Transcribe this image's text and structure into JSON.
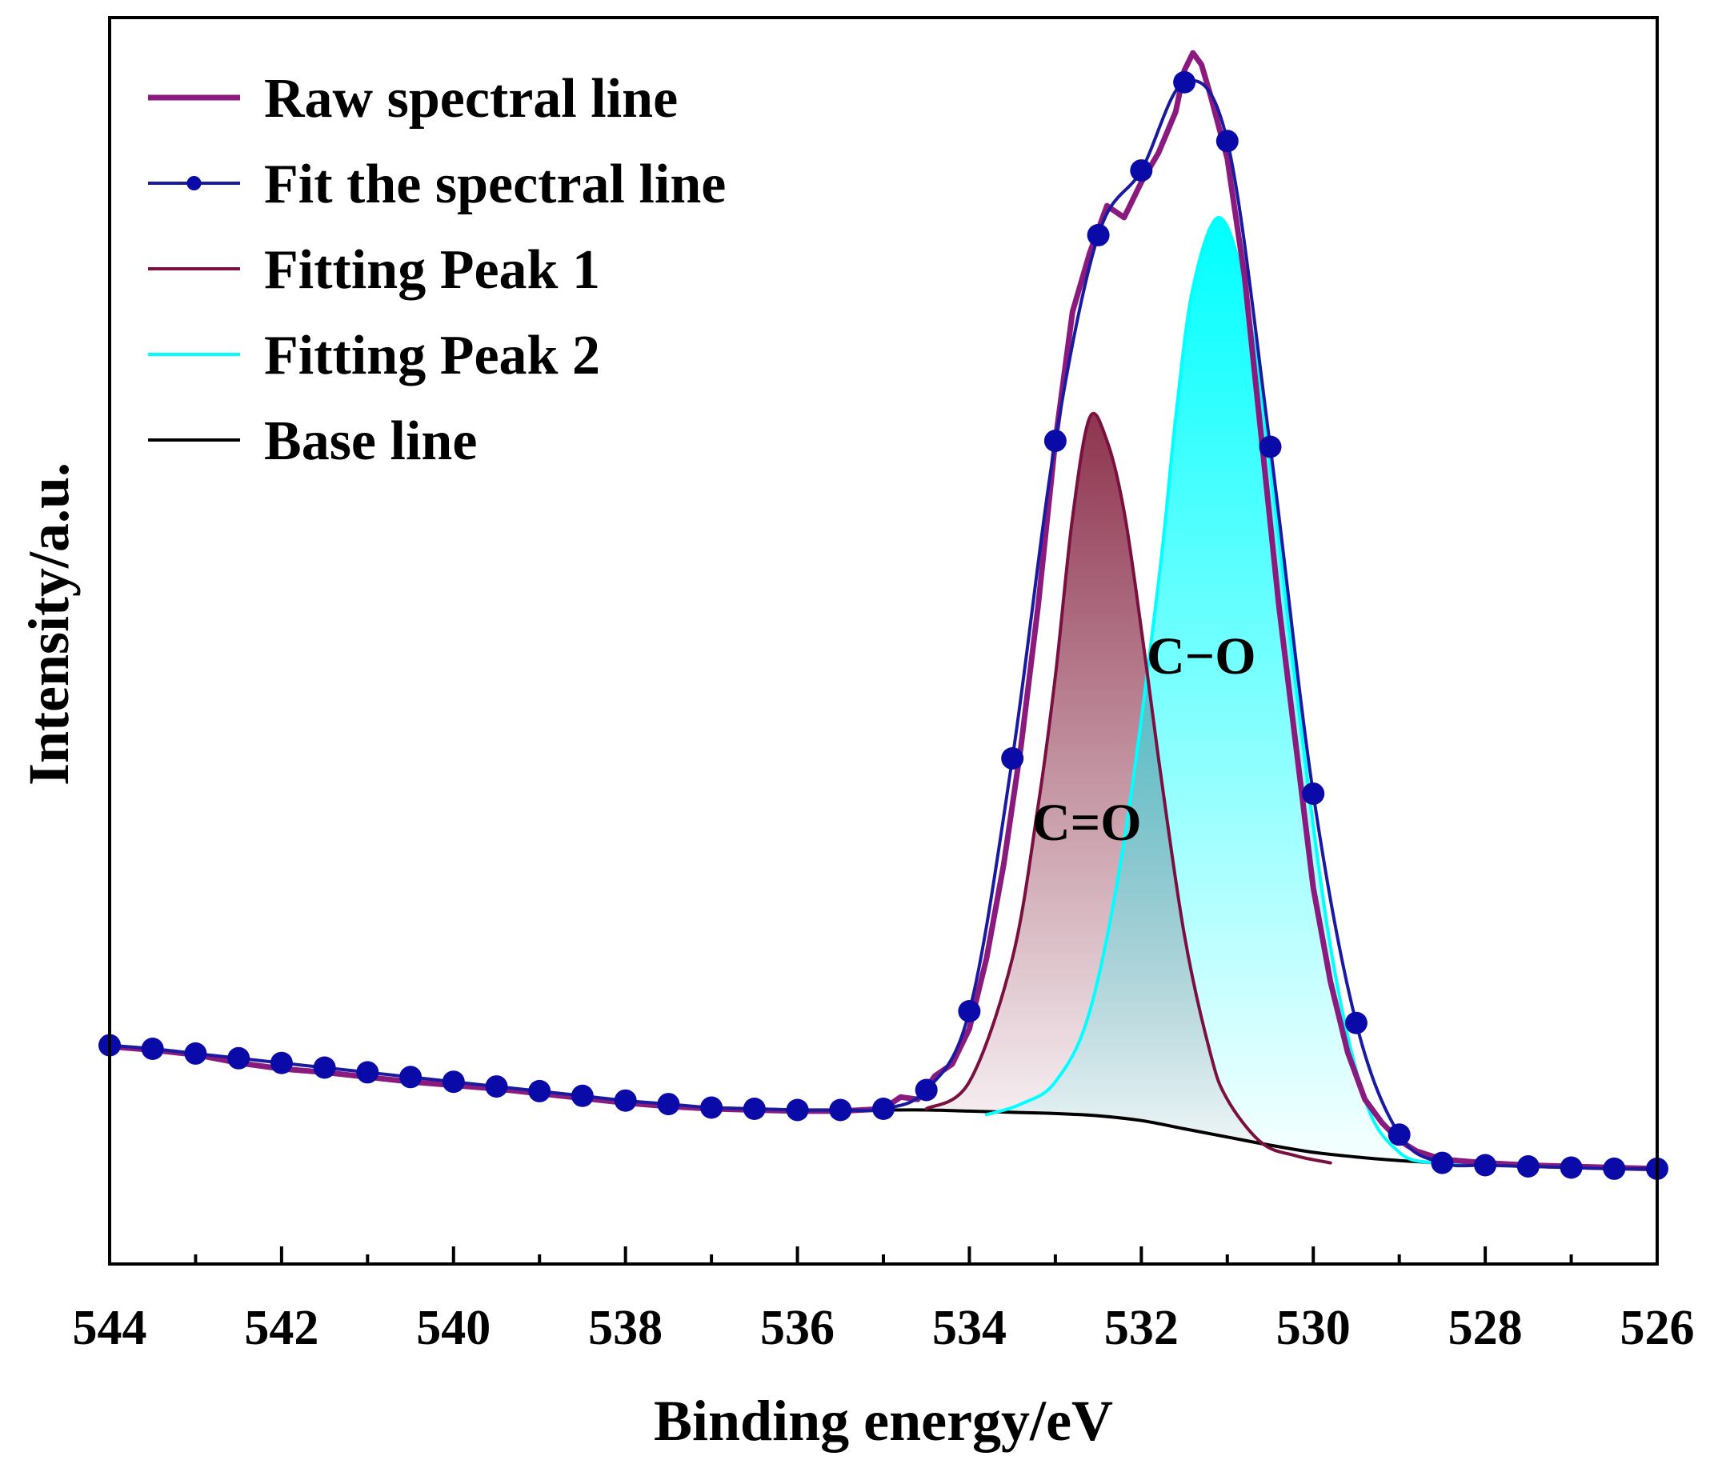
{
  "chart_data": {
    "type": "line",
    "title": "",
    "xlabel": "Binding energy/eV",
    "ylabel": "Intensity/a.u.",
    "xlim": [
      544,
      526
    ],
    "ylim": [
      -6,
      100
    ],
    "x_reversed": true,
    "x_ticks": [
      544,
      542,
      540,
      538,
      536,
      534,
      532,
      530,
      528,
      526
    ],
    "legend_position": "top-left",
    "legend": [
      {
        "key": "raw",
        "label": "Raw spectral line",
        "color": "#8b1a7f"
      },
      {
        "key": "fit",
        "label": "Fit the spectral line",
        "color": "#1a1aa0"
      },
      {
        "key": "peak1",
        "label": "Fitting Peak 1",
        "color": "#7a1040"
      },
      {
        "key": "peak2",
        "label": "Fitting Peak 2",
        "color": "#00ffff"
      },
      {
        "key": "baseline",
        "label": "Base line",
        "color": "#000000"
      }
    ],
    "annotations": [
      {
        "text": "C=O",
        "x": 532.5,
        "y": 33
      },
      {
        "text": "C−O",
        "x": 530.9,
        "y": 51
      }
    ],
    "series": [
      {
        "name": "Raw spectral line",
        "color": "#8b1a7f",
        "x": [
          544.0,
          543.5,
          543.0,
          542.5,
          542.0,
          541.5,
          541.0,
          540.5,
          540.0,
          539.5,
          539.0,
          538.5,
          538.0,
          537.5,
          537.0,
          536.5,
          536.0,
          535.5,
          535.0,
          534.8,
          534.6,
          534.4,
          534.2,
          534.0,
          533.8,
          533.6,
          533.4,
          533.2,
          533.0,
          532.8,
          532.6,
          532.4,
          532.2,
          532.1,
          532.0,
          531.8,
          531.6,
          531.5,
          531.4,
          531.3,
          531.2,
          531.0,
          530.8,
          530.6,
          530.4,
          530.2,
          530.0,
          529.8,
          529.6,
          529.4,
          529.2,
          529.0,
          528.8,
          528.5,
          528.0,
          527.5,
          527.0,
          526.5,
          526.0
        ],
        "y": [
          12.5,
          12.2,
          11.8,
          11.1,
          10.6,
          10.3,
          9.9,
          9.5,
          9.2,
          8.9,
          8.5,
          8.1,
          7.7,
          7.4,
          7.2,
          7.1,
          7.0,
          7.0,
          7.2,
          8.2,
          8.0,
          10.0,
          11.0,
          14.0,
          20.0,
          28.0,
          38.0,
          50.0,
          64.0,
          75.0,
          80.0,
          84.0,
          83.0,
          84.5,
          86.0,
          88.5,
          92.0,
          95.5,
          97.0,
          96.0,
          93.5,
          88.0,
          78.0,
          64.0,
          50.0,
          38.0,
          26.0,
          18.0,
          12.0,
          8.0,
          6.0,
          4.5,
          3.6,
          2.9,
          2.6,
          2.4,
          2.3,
          2.2,
          2.1
        ]
      },
      {
        "name": "Fit the spectral line",
        "color": "#1a1aa0",
        "x": [
          544.0,
          543.5,
          543.0,
          542.5,
          542.0,
          541.5,
          541.0,
          540.5,
          540.0,
          539.5,
          539.0,
          538.5,
          538.0,
          537.5,
          537.0,
          536.5,
          536.0,
          535.5,
          535.0,
          534.5,
          534.0,
          533.5,
          533.0,
          532.5,
          532.0,
          531.5,
          531.0,
          530.5,
          530.0,
          529.5,
          529.0,
          528.5,
          528.0,
          527.5,
          527.0,
          526.5,
          526.0
        ],
        "y": [
          12.6,
          12.3,
          11.9,
          11.5,
          11.1,
          10.7,
          10.3,
          9.9,
          9.5,
          9.1,
          8.7,
          8.3,
          7.9,
          7.6,
          7.3,
          7.2,
          7.1,
          7.1,
          7.2,
          8.8,
          15.5,
          37.0,
          64.0,
          81.5,
          87.0,
          94.5,
          89.5,
          63.5,
          34.0,
          14.5,
          5.0,
          2.6,
          2.4,
          2.3,
          2.2,
          2.1,
          2.1
        ]
      },
      {
        "name": "Fitting Peak 1",
        "color": "#7a1040",
        "fill_top": "#7a1030",
        "peak_center": 532.6,
        "peak_height": 60.0,
        "peak_sigma": 0.62,
        "x": [
          534.5,
          534.0,
          533.5,
          533.2,
          533.0,
          532.8,
          532.6,
          532.4,
          532.2,
          532.0,
          531.8,
          531.5,
          531.2,
          531.0,
          530.6,
          530.2,
          529.8
        ],
        "y": [
          7.2,
          9.5,
          20.0,
          33.0,
          44.0,
          57.5,
          66.0,
          64.0,
          58.0,
          48.0,
          37.0,
          22.0,
          12.0,
          8.0,
          4.3,
          3.2,
          2.6
        ]
      },
      {
        "name": "Fitting Peak 2",
        "color": "#00ffff",
        "fill_top": "#00ffff",
        "peak_center": 531.1,
        "peak_height": 80.0,
        "peak_sigma": 0.6,
        "x": [
          533.8,
          533.4,
          533.0,
          532.6,
          532.2,
          531.8,
          531.6,
          531.4,
          531.1,
          530.8,
          530.5,
          530.2,
          529.8,
          529.4,
          529.0,
          528.6,
          528.2
        ],
        "y": [
          6.7,
          7.6,
          9.5,
          15.5,
          30.0,
          52.0,
          66.0,
          77.0,
          83.0,
          77.0,
          62.0,
          43.0,
          21.0,
          8.0,
          3.5,
          2.6,
          2.5
        ]
      },
      {
        "name": "Base line",
        "color": "#000000",
        "x": [
          535.0,
          534.5,
          534.0,
          533.5,
          533.0,
          532.5,
          532.0,
          531.5,
          531.0,
          530.5,
          530.0,
          529.5,
          529.0,
          528.5,
          528.0,
          527.5
        ],
        "y": [
          7.1,
          7.1,
          7.0,
          6.9,
          6.8,
          6.6,
          6.2,
          5.5,
          4.8,
          4.1,
          3.5,
          3.1,
          2.8,
          2.6,
          2.5,
          2.5
        ]
      }
    ]
  }
}
